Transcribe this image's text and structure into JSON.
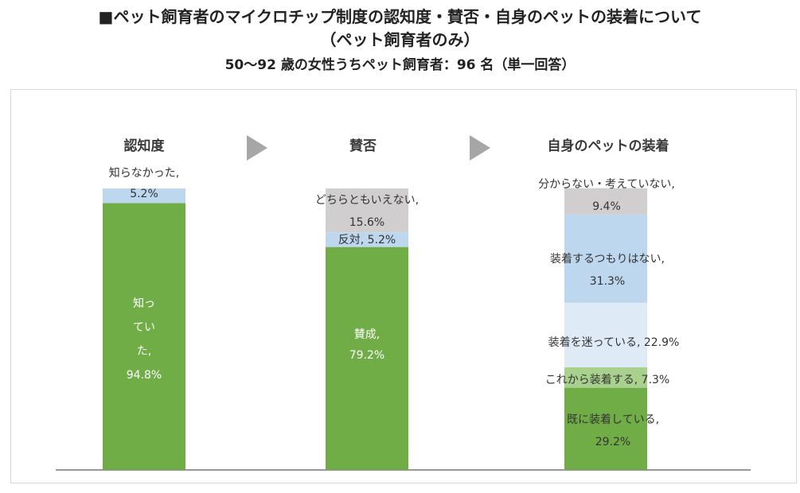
{
  "title": {
    "line1": "■ペット飼育者のマイクロチップ制度の認知度・賛否・自身のペットの装着について",
    "line2": "（ペット飼育者のみ）",
    "line3": "50〜92 歳の女性うちペット飼育者：96 名（単一回答）"
  },
  "colors": {
    "green": "#70ad47",
    "light_green": "#a9d18e",
    "blue": "#bdd7ee",
    "pale_blue": "#deebf7",
    "gray": "#d0cece",
    "arrow": "#a6a6a6",
    "baseline": "#595959"
  },
  "chart_data": [
    {
      "type": "bar",
      "stacked": true,
      "title": "認知度",
      "ylim": [
        0,
        100
      ],
      "segments": [
        {
          "name": "知っていた",
          "value": 94.8,
          "label": [
            "知っ",
            "てい",
            "た,",
            "94.8%"
          ],
          "color": "green",
          "label_color": "white"
        },
        {
          "name": "知らなかった",
          "value": 5.2,
          "label": [
            "知らなかった,",
            "5.2%"
          ],
          "color": "blue",
          "label_color": "dark"
        }
      ]
    },
    {
      "type": "bar",
      "stacked": true,
      "title": "賛否",
      "ylim": [
        0,
        100
      ],
      "segments": [
        {
          "name": "賛成",
          "value": 79.2,
          "label": [
            "賛成,",
            "79.2%"
          ],
          "color": "green",
          "label_color": "white"
        },
        {
          "name": "反対",
          "value": 5.2,
          "label": [
            "反対, 5.2%"
          ],
          "color": "blue",
          "label_color": "dark"
        },
        {
          "name": "どちらともいえない",
          "value": 15.6,
          "label": [
            "どちらともいえない,",
            "15.6%"
          ],
          "color": "gray",
          "label_color": "dark"
        }
      ]
    },
    {
      "type": "bar",
      "stacked": true,
      "title": "自身のペットの装着",
      "ylim": [
        0,
        100
      ],
      "segments": [
        {
          "name": "既に装着している",
          "value": 29.2,
          "label": [
            "既に装着している,",
            "29.2%"
          ],
          "color": "green",
          "label_color": "dark"
        },
        {
          "name": "これから装着する",
          "value": 7.3,
          "label": [
            "これから装着する, 7.3%"
          ],
          "color": "light_green",
          "label_color": "dark"
        },
        {
          "name": "装着を迷っている",
          "value": 22.9,
          "label": [
            "装着を迷っている, 22.9%"
          ],
          "color": "pale_blue",
          "label_color": "dark"
        },
        {
          "name": "装着するつもりはない",
          "value": 31.3,
          "label": [
            "装着するつもりはない,",
            "31.3%"
          ],
          "color": "blue",
          "label_color": "dark"
        },
        {
          "name": "分からない・考えていない",
          "value": 9.4,
          "label": [
            "分からない・考えていない,",
            "9.4%"
          ],
          "color": "gray",
          "label_color": "dark"
        }
      ]
    }
  ]
}
